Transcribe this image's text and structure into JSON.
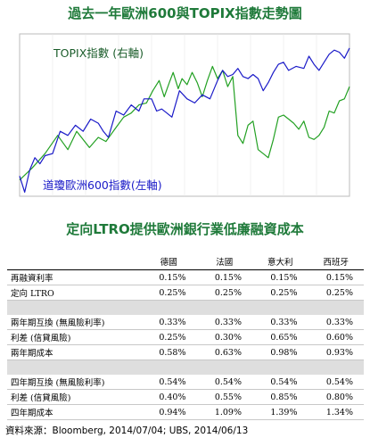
{
  "chart_title": "過去一年歐洲600與TOPIX指數走勢圖",
  "table_title": "定向LTRO提供歐洲銀行業低廉融資成本",
  "source": "資料來源：Bloomberg, 2014/07/04; UBS, 2014/06/13",
  "colors": {
    "topix": "#22a022",
    "stoxx": "#1a1ac8",
    "title": "#1f7a3a",
    "band": "#dedede"
  },
  "chart_data": {
    "type": "line",
    "x_range": [
      0,
      260
    ],
    "series": [
      {
        "name": "TOPIX指數 (右軸)",
        "axis": "right",
        "color": "#22a022",
        "y_range": [
          1000,
          1400
        ],
        "points": [
          [
            0,
            1040
          ],
          [
            10,
            1070
          ],
          [
            20,
            1105
          ],
          [
            30,
            1150
          ],
          [
            38,
            1115
          ],
          [
            45,
            1160
          ],
          [
            55,
            1120
          ],
          [
            62,
            1145
          ],
          [
            68,
            1135
          ],
          [
            75,
            1165
          ],
          [
            82,
            1195
          ],
          [
            88,
            1205
          ],
          [
            94,
            1225
          ],
          [
            100,
            1230
          ],
          [
            105,
            1260
          ],
          [
            110,
            1285
          ],
          [
            114,
            1245
          ],
          [
            118,
            1280
          ],
          [
            121,
            1305
          ],
          [
            125,
            1265
          ],
          [
            128,
            1290
          ],
          [
            132,
            1275
          ],
          [
            136,
            1305
          ],
          [
            140,
            1280
          ],
          [
            144,
            1245
          ],
          [
            148,
            1285
          ],
          [
            152,
            1320
          ],
          [
            156,
            1290
          ],
          [
            160,
            1310
          ],
          [
            164,
            1270
          ],
          [
            168,
            1295
          ],
          [
            172,
            1150
          ],
          [
            176,
            1130
          ],
          [
            180,
            1175
          ],
          [
            184,
            1185
          ],
          [
            188,
            1115
          ],
          [
            192,
            1105
          ],
          [
            196,
            1095
          ],
          [
            200,
            1140
          ],
          [
            204,
            1195
          ],
          [
            208,
            1200
          ],
          [
            212,
            1190
          ],
          [
            216,
            1180
          ],
          [
            220,
            1165
          ],
          [
            224,
            1185
          ],
          [
            228,
            1145
          ],
          [
            232,
            1140
          ],
          [
            236,
            1150
          ],
          [
            240,
            1170
          ],
          [
            244,
            1210
          ],
          [
            248,
            1205
          ],
          [
            252,
            1235
          ],
          [
            256,
            1240
          ],
          [
            260,
            1270
          ]
        ]
      },
      {
        "name": "道瓊歐洲600指數(左軸)",
        "axis": "left",
        "color": "#1a1ac8",
        "y_range": [
          270,
          350
        ],
        "points": [
          [
            0,
            280
          ],
          [
            4,
            272
          ],
          [
            8,
            283
          ],
          [
            12,
            289
          ],
          [
            16,
            286
          ],
          [
            20,
            290
          ],
          [
            26,
            291
          ],
          [
            32,
            302
          ],
          [
            38,
            300
          ],
          [
            44,
            305
          ],
          [
            50,
            302
          ],
          [
            56,
            308
          ],
          [
            62,
            306
          ],
          [
            66,
            302
          ],
          [
            70,
            299
          ],
          [
            76,
            312
          ],
          [
            82,
            310
          ],
          [
            88,
            315
          ],
          [
            94,
            312
          ],
          [
            98,
            318
          ],
          [
            104,
            318
          ],
          [
            108,
            312
          ],
          [
            112,
            313
          ],
          [
            116,
            311
          ],
          [
            120,
            309
          ],
          [
            126,
            322
          ],
          [
            132,
            318
          ],
          [
            138,
            316
          ],
          [
            144,
            320
          ],
          [
            150,
            318
          ],
          [
            156,
            327
          ],
          [
            160,
            332
          ],
          [
            164,
            329
          ],
          [
            168,
            330
          ],
          [
            172,
            333
          ],
          [
            176,
            329
          ],
          [
            180,
            328
          ],
          [
            184,
            330
          ],
          [
            188,
            328
          ],
          [
            192,
            322
          ],
          [
            196,
            326
          ],
          [
            200,
            331
          ],
          [
            204,
            335
          ],
          [
            208,
            336
          ],
          [
            212,
            332
          ],
          [
            218,
            334
          ],
          [
            224,
            333
          ],
          [
            228,
            339
          ],
          [
            232,
            335
          ],
          [
            236,
            332
          ],
          [
            240,
            336
          ],
          [
            244,
            340
          ],
          [
            248,
            342
          ],
          [
            252,
            341
          ],
          [
            256,
            338
          ],
          [
            260,
            343
          ]
        ]
      }
    ],
    "annotations": [
      "TOPIX指數 (右軸)",
      "道瓊歐洲600指數(左軸)"
    ]
  },
  "table": {
    "columns": [
      "德國",
      "法國",
      "意大利",
      "西班牙"
    ],
    "rows": [
      {
        "type": "data",
        "label": "再融資利率",
        "values": [
          "0.15%",
          "0.15%",
          "0.15%",
          "0.15%"
        ]
      },
      {
        "type": "data",
        "label": "定向 LTRO",
        "values": [
          "0.25%",
          "0.25%",
          "0.25%",
          "0.25%"
        ]
      },
      {
        "type": "gap"
      },
      {
        "type": "data",
        "label": "兩年期互換 (無風險利率)",
        "values": [
          "0.33%",
          "0.33%",
          "0.33%",
          "0.33%"
        ]
      },
      {
        "type": "data",
        "label": "利差 (信貸風險)",
        "values": [
          "0.25%",
          "0.30%",
          "0.65%",
          "0.60%"
        ]
      },
      {
        "type": "data",
        "label": "兩年期成本",
        "values": [
          "0.58%",
          "0.63%",
          "0.98%",
          "0.93%"
        ]
      },
      {
        "type": "gap"
      },
      {
        "type": "data",
        "label": "四年期互換 (無風險利率)",
        "values": [
          "0.54%",
          "0.54%",
          "0.54%",
          "0.54%"
        ]
      },
      {
        "type": "data",
        "label": "利差 (信貸風險)",
        "values": [
          "0.40%",
          "0.55%",
          "0.85%",
          "0.80%"
        ]
      },
      {
        "type": "data",
        "label": "四年期成本",
        "values": [
          "0.94%",
          "1.09%",
          "1.39%",
          "1.34%"
        ]
      }
    ]
  }
}
